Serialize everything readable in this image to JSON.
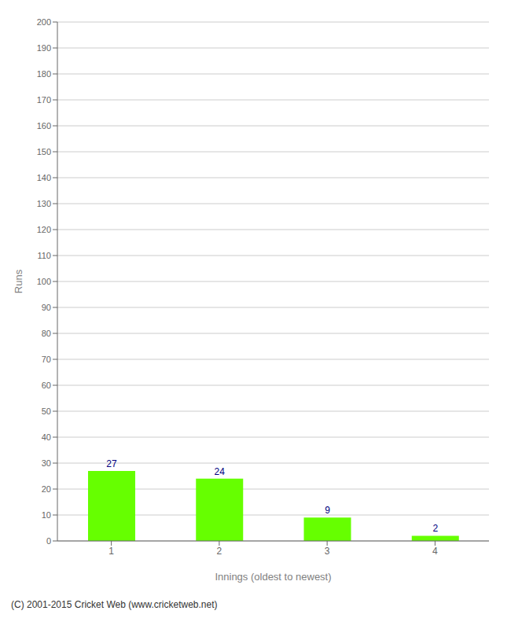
{
  "chart_data": {
    "type": "bar",
    "categories": [
      "1",
      "2",
      "3",
      "4"
    ],
    "values": [
      27,
      24,
      9,
      2
    ],
    "color": "#66ff00",
    "xlabel": "Innings (oldest to newest)",
    "ylabel": "Runs",
    "ylim": [
      0,
      200
    ],
    "yticks": [
      0,
      10,
      20,
      30,
      40,
      50,
      60,
      70,
      80,
      90,
      100,
      110,
      120,
      130,
      140,
      150,
      160,
      170,
      180,
      190,
      200
    ],
    "grid": true,
    "data_labels": true,
    "annotations": [
      "(C) 2001-2015 Cricket Web (www.cricketweb.net)"
    ]
  }
}
